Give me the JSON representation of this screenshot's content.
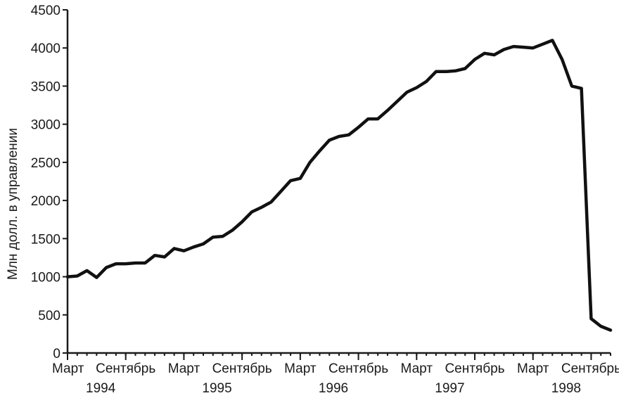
{
  "chart_data": {
    "type": "line",
    "title": "",
    "ylabel": "Млн долл. в управлении",
    "ylim": [
      0,
      4500
    ],
    "yticks": [
      0,
      500,
      1000,
      1500,
      2000,
      2500,
      3000,
      3500,
      4000,
      4500
    ],
    "xlim": [
      0,
      54
    ],
    "xticks": [
      {
        "pos": 0,
        "label": "Март"
      },
      {
        "pos": 6,
        "label": "Сентябрь"
      },
      {
        "pos": 12,
        "label": "Март"
      },
      {
        "pos": 18,
        "label": "Сентябрь"
      },
      {
        "pos": 24,
        "label": "Март"
      },
      {
        "pos": 30,
        "label": "Сентябрь"
      },
      {
        "pos": 36,
        "label": "Март"
      },
      {
        "pos": 42,
        "label": "Сентябрь"
      },
      {
        "pos": 48,
        "label": "Март"
      },
      {
        "pos": 54,
        "label": "Сентябрь"
      }
    ],
    "year_labels": [
      {
        "pos": 4,
        "label": "1994"
      },
      {
        "pos": 16,
        "label": "1995"
      },
      {
        "pos": 28,
        "label": "1996"
      },
      {
        "pos": 40,
        "label": "1997"
      },
      {
        "pos": 52,
        "label": "1998"
      }
    ],
    "x": [
      0,
      1,
      2,
      3,
      4,
      5,
      6,
      7,
      8,
      9,
      10,
      11,
      12,
      13,
      14,
      15,
      16,
      17,
      18,
      19,
      20,
      21,
      22,
      23,
      24,
      25,
      26,
      27,
      28,
      29,
      30,
      31,
      32,
      33,
      34,
      35,
      36,
      37,
      38,
      39,
      40,
      41,
      42,
      43,
      44,
      45,
      46,
      47,
      48,
      49,
      50,
      51,
      52,
      53,
      54,
      55,
      56
    ],
    "series": [
      {
        "values": [
          1000,
          1010,
          1080,
          990,
          1120,
          1170,
          1170,
          1180,
          1180,
          1280,
          1260,
          1370,
          1340,
          1390,
          1430,
          1520,
          1530,
          1610,
          1720,
          1850,
          1910,
          1980,
          2120,
          2260,
          2290,
          2500,
          2650,
          2790,
          2840,
          2860,
          2960,
          3070,
          3070,
          3180,
          3300,
          3420,
          3480,
          3560,
          3690,
          3690,
          3700,
          3730,
          3850,
          3930,
          3910,
          3980,
          4020,
          4010,
          4000,
          4050,
          4100,
          3850,
          3500,
          3470,
          450,
          350,
          300
        ]
      }
    ],
    "grid": false
  }
}
